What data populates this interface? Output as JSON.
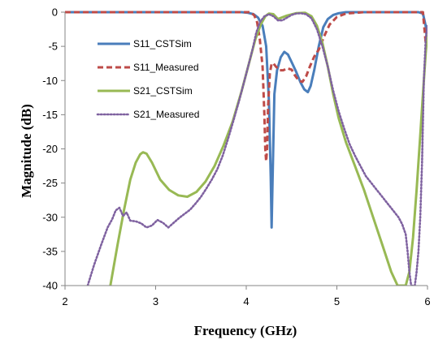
{
  "chart_data": {
    "type": "line",
    "title": "",
    "xlabel": "Frequency (GHz)",
    "ylabel": "Magnitude (dB)",
    "xlim": [
      2,
      6
    ],
    "ylim": [
      -40,
      0
    ],
    "xticks": [
      "2",
      "3",
      "4",
      "5",
      "6"
    ],
    "yticks": [
      "0",
      "-5",
      "-10",
      "-15",
      "-20",
      "-25",
      "-30",
      "-35",
      "-40"
    ],
    "grid": false,
    "legend": "upper-left inside plot",
    "series": [
      {
        "name": "S11_CSTSim",
        "color": "#4a7ebb",
        "style": "solid",
        "x": [
          2.0,
          3.95,
          4.02,
          4.08,
          4.13,
          4.18,
          4.22,
          4.25,
          4.27,
          4.28,
          4.29,
          4.31,
          4.34,
          4.38,
          4.42,
          4.46,
          4.5,
          4.55,
          4.6,
          4.64,
          4.68,
          4.71,
          4.75,
          4.8,
          4.85,
          4.9,
          4.96,
          5.02,
          5.1,
          5.3,
          5.6,
          5.9,
          5.95,
          5.98,
          6.0
        ],
        "y": [
          0,
          0,
          -0.1,
          -0.3,
          -0.8,
          -2,
          -5,
          -13,
          -24,
          -31.5,
          -25,
          -12,
          -8.5,
          -6.6,
          -5.8,
          -6.2,
          -7.3,
          -8.7,
          -10.3,
          -11.3,
          -11.7,
          -10.8,
          -8.5,
          -5,
          -2.2,
          -1,
          -0.4,
          -0.15,
          0,
          0,
          0,
          0,
          -0.2,
          -2,
          -5
        ]
      },
      {
        "name": "S11_Measured",
        "color": "#be4b48",
        "style": "dashed",
        "x": [
          2.0,
          4.05,
          4.09,
          4.12,
          4.15,
          4.18,
          4.2,
          4.21,
          4.22,
          4.23,
          4.24,
          4.26,
          4.28,
          4.3,
          4.33,
          4.37,
          4.41,
          4.45,
          4.5,
          4.54,
          4.58,
          4.62,
          4.66,
          4.7,
          4.75,
          4.8,
          4.86,
          4.92,
          5.0,
          5.1,
          5.3,
          5.6,
          5.95,
          5.96,
          5.97,
          5.98,
          6.0
        ],
        "y": [
          0,
          0,
          -0.5,
          -1.5,
          -4,
          -8,
          -15,
          -20,
          -21.8,
          -20,
          -14,
          -9,
          -7.5,
          -7.5,
          -8,
          -8.5,
          -8.5,
          -8.2,
          -8.4,
          -9.3,
          -10,
          -10.2,
          -9.4,
          -8,
          -6.5,
          -5.5,
          -3.5,
          -1.8,
          -0.7,
          -0.2,
          0,
          0,
          0,
          -1.5,
          -3,
          -4.5,
          -5
        ]
      },
      {
        "name": "S21_CSTSim",
        "color": "#98b954",
        "style": "solid",
        "x": [
          2.5,
          2.58,
          2.65,
          2.72,
          2.78,
          2.83,
          2.86,
          2.9,
          2.96,
          3.05,
          3.15,
          3.25,
          3.35,
          3.45,
          3.55,
          3.65,
          3.75,
          3.85,
          3.95,
          4.03,
          4.1,
          4.16,
          4.21,
          4.25,
          4.3,
          4.35,
          4.45,
          4.55,
          4.65,
          4.72,
          4.78,
          4.84,
          4.9,
          4.96,
          5.02,
          5.1,
          5.2,
          5.3,
          5.4,
          5.5,
          5.6,
          5.67,
          5.72,
          5.76,
          5.8,
          5.84,
          5.88,
          5.92,
          5.95,
          5.98,
          6.0
        ],
        "y": [
          -40,
          -34,
          -29,
          -24.5,
          -22,
          -20.8,
          -20.5,
          -20.7,
          -22,
          -24.5,
          -26,
          -26.8,
          -27,
          -26.3,
          -24.8,
          -22.5,
          -19.5,
          -16,
          -11.5,
          -7.5,
          -4,
          -1.8,
          -0.6,
          -0.2,
          -0.3,
          -1,
          -0.5,
          -0.15,
          -0.1,
          -0.6,
          -2,
          -4.5,
          -8,
          -12,
          -15.5,
          -19,
          -22.5,
          -26,
          -30,
          -34,
          -38,
          -40,
          -40,
          -40,
          -38,
          -33,
          -26,
          -18,
          -12,
          -6,
          -3
        ]
      },
      {
        "name": "S21_Measured",
        "color": "#7f62a0",
        "style": "dotted",
        "x": [
          2.25,
          2.32,
          2.4,
          2.47,
          2.52,
          2.56,
          2.6,
          2.64,
          2.68,
          2.72,
          2.78,
          2.84,
          2.9,
          2.96,
          3.02,
          3.08,
          3.14,
          3.2,
          3.26,
          3.32,
          3.38,
          3.44,
          3.5,
          3.56,
          3.62,
          3.68,
          3.74,
          3.8,
          3.86,
          3.92,
          3.98,
          4.03,
          4.07,
          4.11,
          4.15,
          4.2,
          4.25,
          4.3,
          4.35,
          4.4,
          4.45,
          4.5,
          4.55,
          4.6,
          4.66,
          4.72,
          4.78,
          4.84,
          4.9,
          4.96,
          5.02,
          5.08,
          5.14,
          5.2,
          5.26,
          5.32,
          5.38,
          5.44,
          5.5,
          5.56,
          5.62,
          5.68,
          5.72,
          5.76,
          5.78,
          5.8,
          5.82,
          5.84,
          5.86,
          5.88,
          5.9,
          5.92,
          5.94,
          5.96,
          5.98,
          6.0
        ],
        "y": [
          -40,
          -37,
          -34,
          -31.5,
          -30.3,
          -29,
          -28.6,
          -29.8,
          -29.3,
          -30.5,
          -30.6,
          -30.9,
          -31.5,
          -31.2,
          -30.4,
          -30.8,
          -31.5,
          -30.8,
          -30.1,
          -29.5,
          -28.9,
          -28,
          -27,
          -25.8,
          -24.5,
          -23,
          -21,
          -18.5,
          -15.8,
          -13,
          -10,
          -7.5,
          -5.4,
          -3,
          -1.5,
          -0.6,
          -0.3,
          -0.6,
          -1.2,
          -1.2,
          -0.8,
          -0.4,
          -0.2,
          -0.15,
          -0.3,
          -0.9,
          -2.5,
          -5,
          -8,
          -11.5,
          -14.5,
          -17,
          -19.3,
          -21,
          -22.5,
          -24,
          -25,
          -26,
          -27,
          -28,
          -29,
          -30,
          -31,
          -32.5,
          -35,
          -38,
          -40,
          -40,
          -40,
          -38,
          -35,
          -30,
          -22,
          -10,
          -4,
          -2
        ]
      }
    ]
  }
}
